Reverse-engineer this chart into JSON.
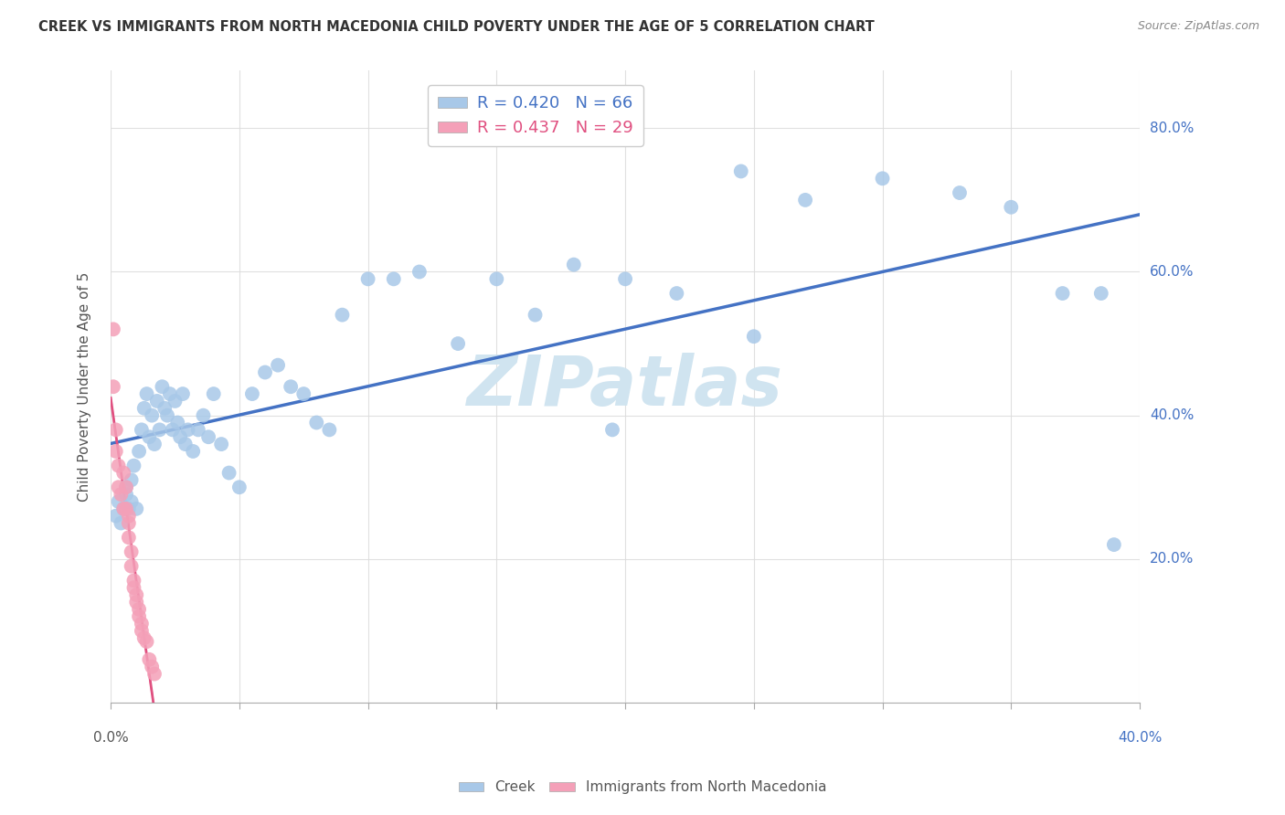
{
  "title": "CREEK VS IMMIGRANTS FROM NORTH MACEDONIA CHILD POVERTY UNDER THE AGE OF 5 CORRELATION CHART",
  "source": "Source: ZipAtlas.com",
  "ylabel": "Child Poverty Under the Age of 5",
  "xlim": [
    0.0,
    0.4
  ],
  "ylim": [
    0.0,
    0.88
  ],
  "yticks": [
    0.2,
    0.4,
    0.6,
    0.8
  ],
  "ytick_labels": [
    "20.0%",
    "40.0%",
    "60.0%",
    "80.0%"
  ],
  "xtick_left": "0.0%",
  "xtick_right": "40.0%",
  "legend_creek_R": "R = 0.420",
  "legend_creek_N": "N = 66",
  "legend_nm_R": "R = 0.437",
  "legend_nm_N": "N = 29",
  "creek_color": "#a8c8e8",
  "nm_color": "#f4a0b8",
  "creek_line_color": "#4472c4",
  "nm_line_color": "#e05080",
  "watermark": "ZIPatlas",
  "watermark_color": "#d0e4f0",
  "background_color": "#ffffff",
  "creek_x": [
    0.002,
    0.003,
    0.004,
    0.005,
    0.006,
    0.006,
    0.007,
    0.008,
    0.008,
    0.009,
    0.01,
    0.011,
    0.012,
    0.013,
    0.014,
    0.015,
    0.016,
    0.017,
    0.018,
    0.019,
    0.02,
    0.021,
    0.022,
    0.023,
    0.024,
    0.025,
    0.026,
    0.027,
    0.028,
    0.029,
    0.03,
    0.032,
    0.034,
    0.036,
    0.038,
    0.04,
    0.043,
    0.046,
    0.05,
    0.055,
    0.06,
    0.065,
    0.07,
    0.075,
    0.08,
    0.09,
    0.1,
    0.11,
    0.12,
    0.135,
    0.15,
    0.165,
    0.18,
    0.2,
    0.22,
    0.245,
    0.27,
    0.3,
    0.33,
    0.35,
    0.37,
    0.385,
    0.39,
    0.25,
    0.195,
    0.085
  ],
  "creek_y": [
    0.26,
    0.28,
    0.25,
    0.27,
    0.3,
    0.29,
    0.27,
    0.31,
    0.28,
    0.33,
    0.27,
    0.35,
    0.38,
    0.41,
    0.43,
    0.37,
    0.4,
    0.36,
    0.42,
    0.38,
    0.44,
    0.41,
    0.4,
    0.43,
    0.38,
    0.42,
    0.39,
    0.37,
    0.43,
    0.36,
    0.38,
    0.35,
    0.38,
    0.4,
    0.37,
    0.43,
    0.36,
    0.32,
    0.3,
    0.43,
    0.46,
    0.47,
    0.44,
    0.43,
    0.39,
    0.54,
    0.59,
    0.59,
    0.6,
    0.5,
    0.59,
    0.54,
    0.61,
    0.59,
    0.57,
    0.74,
    0.7,
    0.73,
    0.71,
    0.69,
    0.57,
    0.57,
    0.22,
    0.51,
    0.38,
    0.38
  ],
  "nm_x": [
    0.001,
    0.001,
    0.002,
    0.002,
    0.003,
    0.003,
    0.004,
    0.005,
    0.005,
    0.006,
    0.006,
    0.007,
    0.007,
    0.007,
    0.008,
    0.008,
    0.009,
    0.009,
    0.01,
    0.01,
    0.011,
    0.011,
    0.012,
    0.012,
    0.013,
    0.014,
    0.015,
    0.016,
    0.017
  ],
  "nm_y": [
    0.52,
    0.44,
    0.38,
    0.35,
    0.33,
    0.3,
    0.29,
    0.32,
    0.27,
    0.3,
    0.27,
    0.26,
    0.25,
    0.23,
    0.21,
    0.19,
    0.17,
    0.16,
    0.15,
    0.14,
    0.13,
    0.12,
    0.11,
    0.1,
    0.09,
    0.085,
    0.06,
    0.05,
    0.04
  ]
}
